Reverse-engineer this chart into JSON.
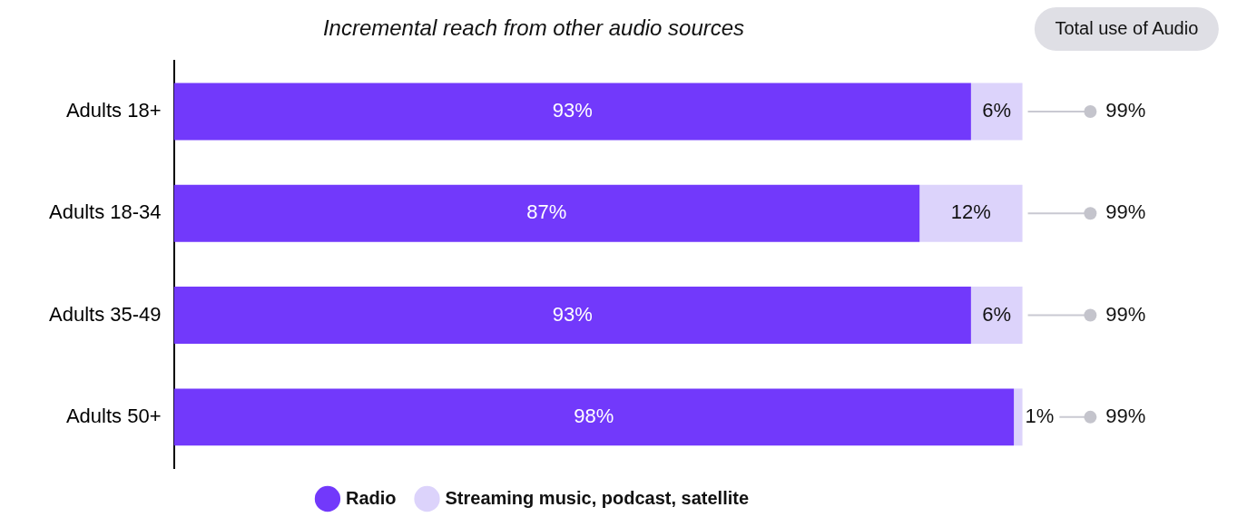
{
  "chart_data": {
    "type": "bar",
    "orientation": "horizontal",
    "stacked": true,
    "title": "Incremental reach from other audio sources",
    "categories": [
      "Adults 18+",
      "Adults 18-34",
      "Adults 35-49",
      "Adults 50+"
    ],
    "series": [
      {
        "name": "Radio",
        "color": "#7239fb",
        "values": [
          93,
          87,
          93,
          98
        ],
        "value_labels": [
          "93%",
          "87%",
          "93%",
          "98%"
        ]
      },
      {
        "name": "Streaming music, podcast, satellite",
        "color": "#dcd3fb",
        "values": [
          6,
          12,
          6,
          1
        ],
        "value_labels": [
          "6%",
          "12%",
          "6%",
          "1%"
        ]
      }
    ],
    "annotations": [
      "Total use of Audio",
      "99%",
      "99%",
      "99%",
      "99%"
    ],
    "grid": false,
    "legend": "bottom",
    "tick_labels": "y"
  }
}
